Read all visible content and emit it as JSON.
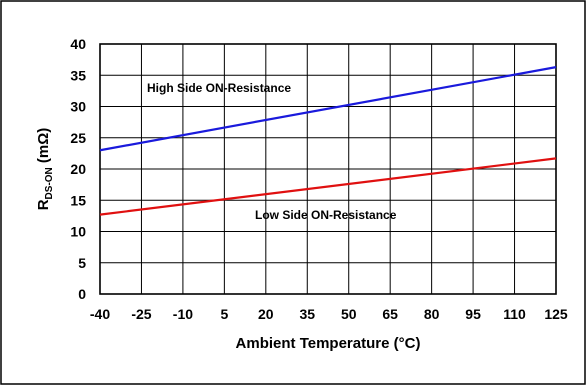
{
  "chart_data": {
    "type": "line",
    "title": "",
    "xlabel": "Ambient Temperature (°C)",
    "ylabel_main": "R",
    "ylabel_sub": "DS-ON",
    "ylabel_unit": " (mΩ)",
    "xlim": [
      -40,
      125
    ],
    "ylim": [
      0,
      40
    ],
    "x_ticks": [
      -40,
      -25,
      -10,
      5,
      20,
      35,
      50,
      65,
      80,
      95,
      110,
      125
    ],
    "y_ticks": [
      0,
      5,
      10,
      15,
      20,
      25,
      30,
      35,
      40
    ],
    "grid": true,
    "series": [
      {
        "name": "High Side ON-Resistance",
        "color": "#1a1adc",
        "x": [
          -40,
          125
        ],
        "y": [
          23.0,
          36.3
        ]
      },
      {
        "name": "Low Side ON-Resistance",
        "color": "#e01010",
        "x": [
          -40,
          125
        ],
        "y": [
          12.7,
          21.7
        ]
      }
    ]
  }
}
